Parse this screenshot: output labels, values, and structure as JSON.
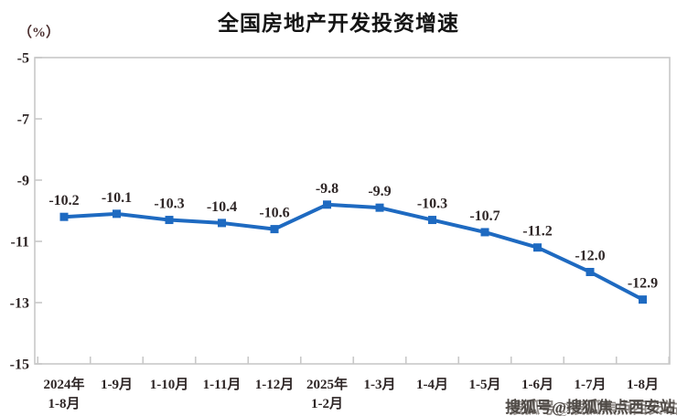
{
  "title": {
    "text": "全国房地产开发投资增速"
  },
  "y_axis_unit": "（%）",
  "watermark": {
    "text": "搜狐号@搜狐焦点西安站"
  },
  "colors": {
    "line": "#1e6ac1",
    "marker": "#1e6ac1",
    "frame": "#c8c8c8",
    "tick": "#c8c8c8",
    "axis_text": "#2e2626",
    "data_label": "#2e2626",
    "title_text": "#141414"
  },
  "chart_data": {
    "type": "line",
    "title": "全国房地产开发投资增速",
    "unit": "（%）",
    "categories": [
      [
        "2024年",
        "1-8月"
      ],
      "1-9月",
      "1-10月",
      "1-11月",
      "1-12月",
      [
        "2025年",
        "1-2月"
      ],
      "1-3月",
      "1-4月",
      "1-5月",
      "1-6月",
      "1-7月",
      "1-8月"
    ],
    "values": [
      -10.2,
      -10.1,
      -10.3,
      -10.4,
      -10.6,
      -9.8,
      -9.9,
      -10.3,
      -10.7,
      -11.2,
      -12.0,
      -12.9
    ],
    "data_labels": [
      "-10.2",
      "-10.1",
      "-10.3",
      "-10.4",
      "-10.6",
      "-9.8",
      "-9.9",
      "-10.3",
      "-10.7",
      "-11.2",
      "-12.0",
      "-12.9"
    ],
    "y_ticks": [
      -5,
      -7,
      -9,
      -11,
      -13,
      -15
    ],
    "ylim": [
      -15,
      -5
    ],
    "marker": "square",
    "grid": false,
    "legend": false,
    "xlabel": "",
    "ylabel": "（%）"
  }
}
